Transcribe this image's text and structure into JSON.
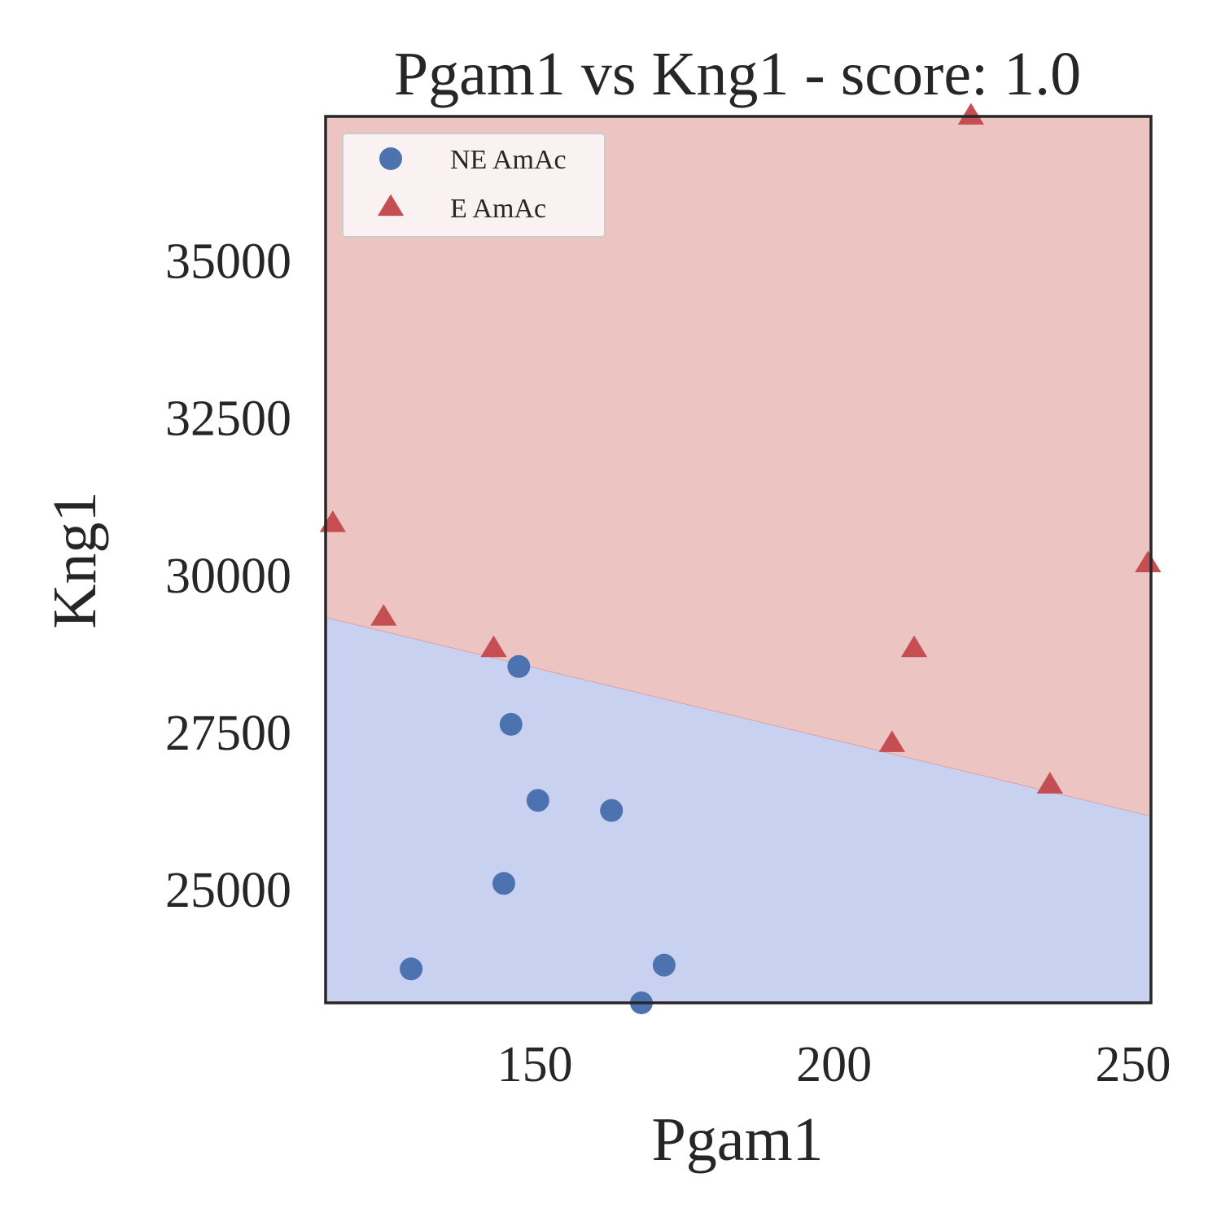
{
  "chart_data": {
    "type": "scatter",
    "title": "Pgam1 vs Kng1 - score: 1.0",
    "xlabel": "Pgam1",
    "ylabel": "Kng1",
    "xlim": [
      115,
      253
    ],
    "ylim": [
      23200,
      37300
    ],
    "xticks": [
      150,
      200,
      250
    ],
    "yticks": [
      25000,
      27500,
      30000,
      32500,
      35000
    ],
    "grid": false,
    "legend_position": "top-left",
    "decision_boundary": {
      "x": [
        115,
        253
      ],
      "y": [
        29330,
        26170
      ],
      "below_label": "NE AmAc",
      "above_label": "E AmAc",
      "below_color": "#c9d1f1",
      "above_color": "#ecc5c3"
    },
    "series": [
      {
        "name": "NE AmAc",
        "marker": "circle",
        "color": "#4c72b0",
        "points": [
          [
            147.3,
            28550
          ],
          [
            146.0,
            27630
          ],
          [
            150.5,
            26420
          ],
          [
            162.8,
            26260
          ],
          [
            144.8,
            25100
          ],
          [
            129.3,
            23740
          ],
          [
            171.6,
            23800
          ],
          [
            167.8,
            23200
          ]
        ]
      },
      {
        "name": "E AmAc",
        "marker": "triangle",
        "color": "#c44e52",
        "points": [
          [
            116.2,
            30820
          ],
          [
            124.7,
            29330
          ],
          [
            143.1,
            28830
          ],
          [
            213.4,
            28830
          ],
          [
            209.7,
            27320
          ],
          [
            236.1,
            26660
          ],
          [
            252.5,
            30180
          ],
          [
            222.9,
            37300
          ]
        ]
      }
    ]
  }
}
